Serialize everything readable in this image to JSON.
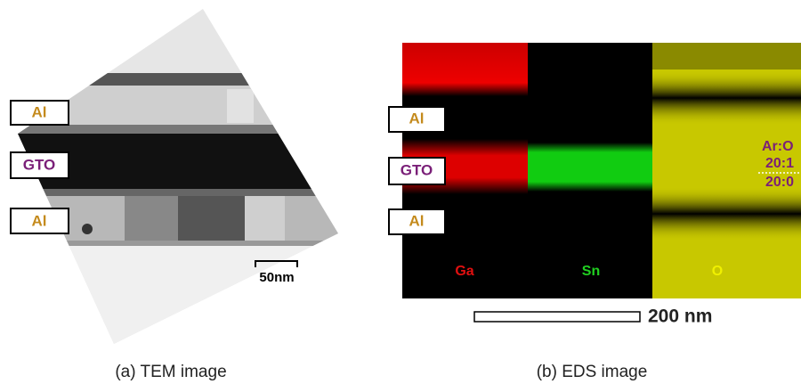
{
  "left_panel": {
    "layer_labels": [
      "Al",
      "GTO",
      "Al"
    ],
    "scale_bar": "50nm",
    "caption": "(a) TEM image"
  },
  "right_panel": {
    "layer_labels": [
      "Al",
      "GTO",
      "Al"
    ],
    "elements": [
      "Ga",
      "Sn",
      "O"
    ],
    "ratio_title": "Ar:O",
    "ratios": [
      "20:1",
      "20:0"
    ],
    "scale_bar": "200 nm",
    "caption": "(b) EDS image"
  }
}
